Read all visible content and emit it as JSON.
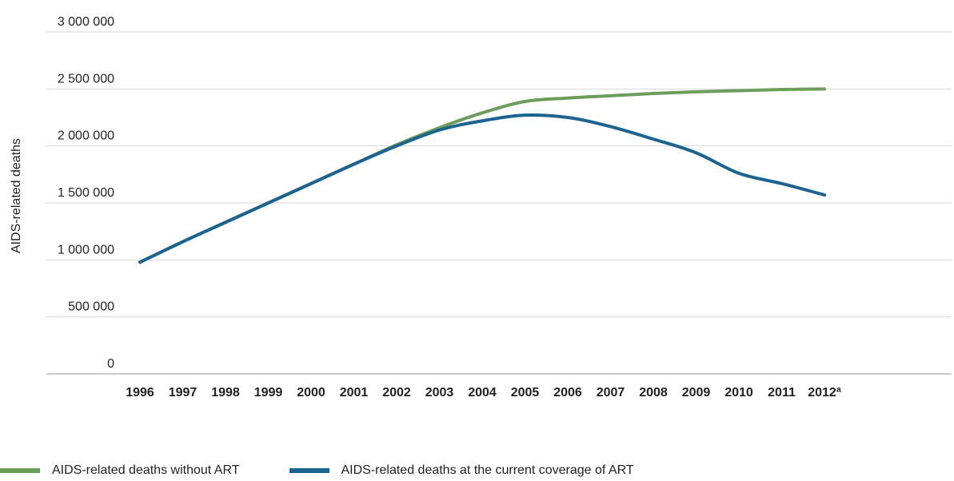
{
  "chart_data": {
    "type": "line",
    "ylabel": "AIDS-related deaths",
    "xlabel": "",
    "categories": [
      "1996",
      "1997",
      "1998",
      "1999",
      "2000",
      "2001",
      "2002",
      "2003",
      "2004",
      "2005",
      "2006",
      "2007",
      "2008",
      "2009",
      "2010",
      "2011",
      "2012"
    ],
    "x_tick_labels": [
      "1996",
      "1997",
      "1998",
      "1999",
      "2000",
      "2001",
      "2002",
      "2003",
      "2004",
      "2005",
      "2006",
      "2007",
      "2008",
      "2009",
      "2010",
      "2011",
      "2012ª"
    ],
    "ylim": [
      0,
      3000000
    ],
    "y_ticks": [
      0,
      500000,
      1000000,
      1500000,
      2000000,
      2500000,
      3000000
    ],
    "y_tick_labels": [
      "0",
      "500 000",
      "1 000 000",
      "1 500 000",
      "2 000  000",
      "2 500 000",
      "3 000 000"
    ],
    "grid": true,
    "legend_position": "bottom-left",
    "series": [
      {
        "name": "AIDS-related deaths without ART",
        "color": "#6a9e5a",
        "values": [
          980000,
          1160000,
          1330000,
          1500000,
          1670000,
          1840000,
          2010000,
          2160000,
          2290000,
          2390000,
          2420000,
          2440000,
          2460000,
          2475000,
          2485000,
          2495000,
          2500000
        ]
      },
      {
        "name": "AIDS-related deaths at the current coverage of ART",
        "color": "#1b6491",
        "values": [
          980000,
          1160000,
          1330000,
          1500000,
          1670000,
          1840000,
          2000000,
          2140000,
          2220000,
          2270000,
          2250000,
          2170000,
          2060000,
          1940000,
          1760000,
          1670000,
          1570000
        ]
      }
    ]
  }
}
